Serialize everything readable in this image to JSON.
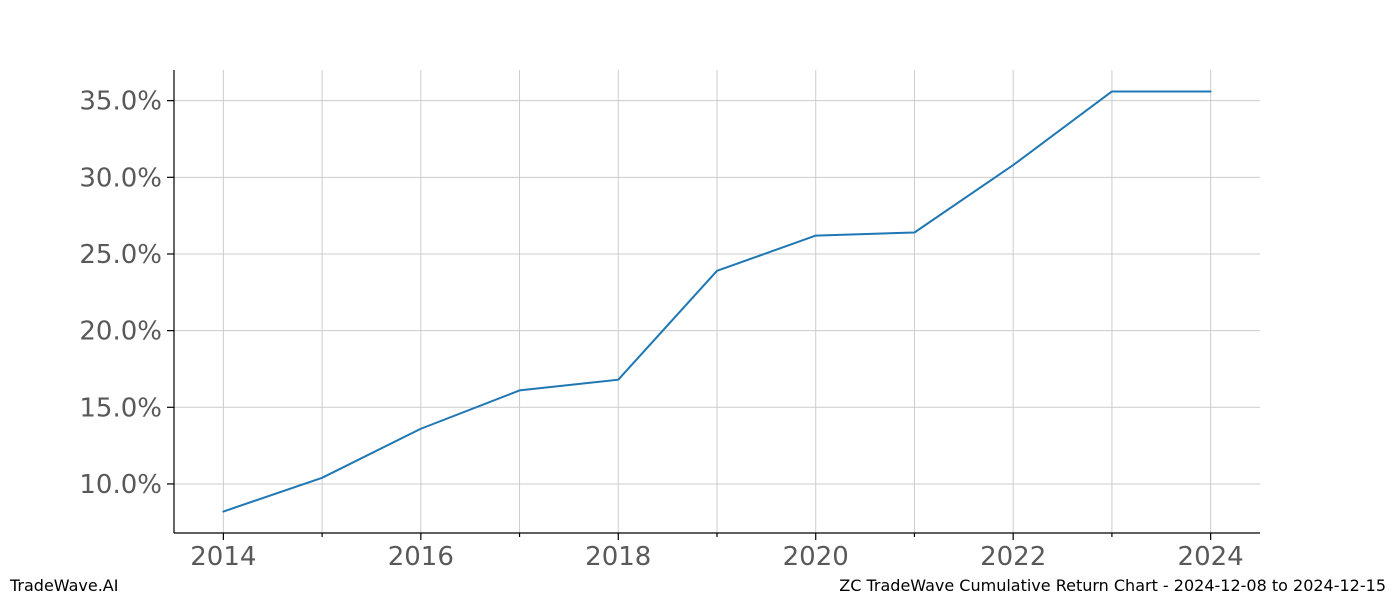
{
  "footer": {
    "brand": "TradeWave.AI",
    "title": "ZC TradeWave Cumulative Return Chart - 2024-12-08 to 2024-12-15"
  },
  "chart_data": {
    "type": "line",
    "title": "",
    "xlabel": "",
    "ylabel": "",
    "x": [
      2014,
      2015,
      2016,
      2017,
      2018,
      2019,
      2020,
      2021,
      2022,
      2023,
      2024
    ],
    "series": [
      {
        "name": "cumulative-return",
        "values": [
          8.2,
          10.4,
          13.6,
          16.1,
          16.8,
          23.9,
          26.2,
          26.4,
          30.8,
          35.6,
          35.6
        ]
      }
    ],
    "unit": "%",
    "xlim": [
      2013.5,
      2024.5
    ],
    "ylim": [
      6.8,
      37.0
    ],
    "xticks_major": [
      2014,
      2016,
      2018,
      2020,
      2022,
      2024
    ],
    "xticks_minor": [
      2015,
      2017,
      2019,
      2021,
      2023
    ],
    "xtick_labels": [
      "2014",
      "2016",
      "2018",
      "2020",
      "2022",
      "2024"
    ],
    "yticks": [
      10,
      15,
      20,
      25,
      30,
      35
    ],
    "ytick_labels": [
      "10.0%",
      "15.0%",
      "20.0%",
      "25.0%",
      "30.0%",
      "35.0%"
    ],
    "grid": true,
    "legend": "none",
    "colors": {
      "line": "#1f77b4",
      "grid": "#cccccc",
      "spine": "#000000",
      "tick_label": "#595959",
      "background": "#ffffff"
    }
  }
}
